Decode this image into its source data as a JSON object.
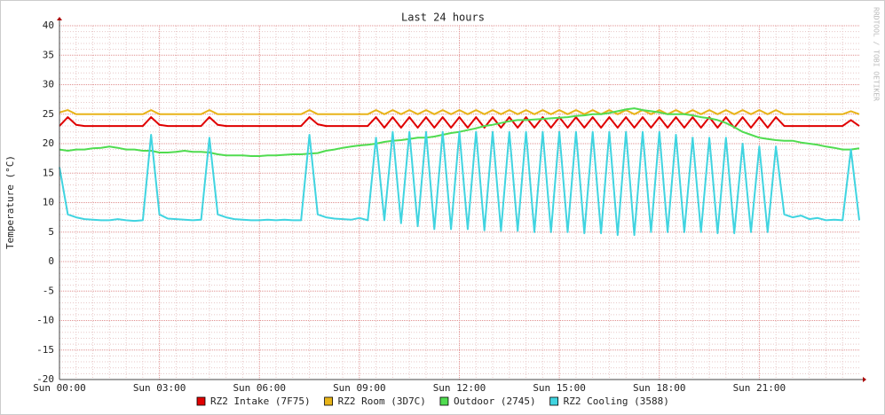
{
  "chart_data": {
    "type": "line",
    "title": "Last 24 hours",
    "y_label": "Temperature (°C)",
    "watermark": "RRDTOOL / TOBI OETIKER",
    "grid": true,
    "xlim": [
      0,
      24
    ],
    "xticks": [
      {
        "value": 0,
        "label": "Sun 00:00"
      },
      {
        "value": 3,
        "label": "Sun 03:00"
      },
      {
        "value": 6,
        "label": "Sun 06:00"
      },
      {
        "value": 9,
        "label": "Sun 09:00"
      },
      {
        "value": 12,
        "label": "Sun 12:00"
      },
      {
        "value": 15,
        "label": "Sun 15:00"
      },
      {
        "value": 18,
        "label": "Sun 18:00"
      },
      {
        "value": 21,
        "label": "Sun 21:00"
      }
    ],
    "ylim": [
      -20,
      40
    ],
    "yticks": [
      -20,
      -15,
      -10,
      -5,
      0,
      5,
      10,
      15,
      20,
      25,
      30,
      35,
      40
    ],
    "x": [
      0,
      0.25,
      0.5,
      0.75,
      1,
      1.25,
      1.5,
      1.75,
      2,
      2.25,
      2.5,
      2.75,
      3,
      3.25,
      3.5,
      3.75,
      4,
      4.25,
      4.5,
      4.75,
      5,
      5.25,
      5.5,
      5.75,
      6,
      6.25,
      6.5,
      6.75,
      7,
      7.25,
      7.5,
      7.75,
      8,
      8.25,
      8.5,
      8.75,
      9,
      9.25,
      9.5,
      9.75,
      10,
      10.25,
      10.5,
      10.75,
      11,
      11.25,
      11.5,
      11.75,
      12,
      12.25,
      12.5,
      12.75,
      13,
      13.25,
      13.5,
      13.75,
      14,
      14.25,
      14.5,
      14.75,
      15,
      15.25,
      15.5,
      15.75,
      16,
      16.25,
      16.5,
      16.75,
      17,
      17.25,
      17.5,
      17.75,
      18,
      18.25,
      18.5,
      18.75,
      19,
      19.25,
      19.5,
      19.75,
      20,
      20.25,
      20.5,
      20.75,
      21,
      21.25,
      21.5,
      21.75,
      22,
      22.25,
      22.5,
      22.75,
      23,
      23.25,
      23.5,
      23.75,
      24
    ],
    "series": [
      {
        "name": "RZ2 Intake (7F75)",
        "color": "#e00000",
        "values": [
          23,
          24.5,
          23.2,
          23,
          23,
          23,
          23,
          23,
          23,
          23,
          23,
          24.5,
          23.2,
          23,
          23,
          23,
          23,
          23,
          24.5,
          23.2,
          23,
          23,
          23,
          23,
          23,
          23,
          23,
          23,
          23,
          23,
          24.5,
          23.3,
          23,
          23,
          23,
          23,
          23,
          23,
          24.5,
          22.7,
          24.5,
          22.7,
          24.5,
          22.7,
          24.5,
          22.7,
          24.5,
          22.7,
          24.5,
          22.7,
          24.5,
          22.7,
          24.5,
          22.7,
          24.5,
          22.7,
          24.5,
          22.7,
          24.5,
          22.7,
          24.5,
          22.7,
          24.5,
          22.7,
          24.5,
          22.7,
          24.5,
          22.7,
          24.5,
          22.7,
          24.5,
          22.7,
          24.5,
          22.7,
          24.5,
          22.7,
          24.5,
          22.7,
          24.5,
          22.7,
          24.5,
          22.7,
          24.5,
          22.7,
          24.5,
          22.7,
          24.5,
          23,
          23,
          23,
          23,
          23,
          23,
          23,
          23,
          24,
          23
        ]
      },
      {
        "name": "RZ2 Room (3D7C)",
        "color": "#e8b418",
        "values": [
          25.3,
          25.7,
          25,
          25,
          25,
          25,
          25,
          25,
          25,
          25,
          25,
          25.7,
          25,
          25,
          25,
          25,
          25,
          25,
          25.7,
          25,
          25,
          25,
          25,
          25,
          25,
          25,
          25,
          25,
          25,
          25,
          25.7,
          25,
          25,
          25,
          25,
          25,
          25,
          25,
          25.7,
          25,
          25.7,
          25,
          25.7,
          25,
          25.7,
          25,
          25.7,
          25,
          25.7,
          25,
          25.7,
          25,
          25.7,
          25,
          25.7,
          25,
          25.7,
          25,
          25.7,
          25,
          25.7,
          25,
          25.7,
          25,
          25.7,
          25,
          25.7,
          25,
          25.7,
          25,
          25.7,
          25,
          25.7,
          25,
          25.7,
          25,
          25.7,
          25,
          25.7,
          25,
          25.7,
          25,
          25.7,
          25,
          25.7,
          25,
          25.7,
          25,
          25,
          25,
          25,
          25,
          25,
          25,
          25,
          25.5,
          25
        ]
      },
      {
        "name": "Outdoor (2745)",
        "color": "#50dc50",
        "values": [
          19,
          18.8,
          19,
          19,
          19.2,
          19.3,
          19.5,
          19.3,
          19,
          19,
          18.8,
          18.8,
          18.5,
          18.5,
          18.6,
          18.8,
          18.6,
          18.6,
          18.5,
          18.2,
          18,
          18,
          18,
          17.9,
          17.9,
          18,
          18,
          18.1,
          18.2,
          18.2,
          18.3,
          18.4,
          18.8,
          19,
          19.3,
          19.5,
          19.7,
          19.8,
          20,
          20.3,
          20.5,
          20.6,
          20.8,
          21,
          21,
          21.2,
          21.5,
          21.8,
          22,
          22.3,
          22.6,
          23,
          23.2,
          23.5,
          23.8,
          24,
          24,
          24.1,
          24.2,
          24.3,
          24.4,
          24.5,
          24.7,
          24.8,
          25,
          25,
          25.2,
          25.5,
          25.8,
          26,
          25.7,
          25.5,
          25.3,
          25,
          25,
          25,
          24.8,
          24.5,
          24.3,
          24,
          23.5,
          22.8,
          22,
          21.5,
          21,
          20.8,
          20.6,
          20.5,
          20.5,
          20.2,
          20,
          19.8,
          19.5,
          19.3,
          19,
          19,
          19.2
        ]
      },
      {
        "name": "RZ2 Cooling (3588)",
        "color": "#40d4e0",
        "values": [
          16,
          8,
          7.5,
          7.2,
          7.1,
          7,
          7,
          7.2,
          7,
          6.9,
          7,
          21.5,
          8,
          7.3,
          7.2,
          7.1,
          7,
          7.1,
          21,
          8,
          7.5,
          7.2,
          7.1,
          7,
          7,
          7.1,
          7,
          7.1,
          7,
          7,
          21.5,
          8,
          7.5,
          7.3,
          7.2,
          7.1,
          7.4,
          7,
          21,
          7,
          22,
          6.5,
          22,
          6,
          22,
          5.5,
          22,
          5.5,
          22,
          5.5,
          22,
          5.3,
          22,
          5.2,
          22,
          5.2,
          22,
          5,
          22,
          5,
          22,
          5,
          22,
          4.8,
          22,
          4.8,
          22,
          4.5,
          22,
          4.5,
          22,
          5,
          22,
          5,
          21.5,
          5,
          21,
          5,
          21,
          4.8,
          21,
          4.8,
          20,
          5,
          19.5,
          5,
          19.5,
          8,
          7.5,
          7.8,
          7.2,
          7.4,
          7,
          7.1,
          7,
          19,
          7
        ]
      }
    ]
  }
}
